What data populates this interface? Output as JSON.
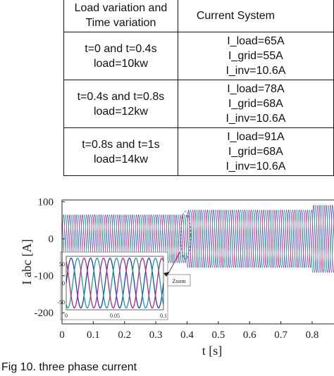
{
  "table": {
    "headers": [
      "Load variation and Time variation",
      "Current System"
    ],
    "rows": [
      {
        "time": [
          "t=0 and t=0.4s",
          "load=10kw"
        ],
        "currents": [
          "I_load=65A",
          "I_grid=55A",
          "I_inv=10.6A"
        ]
      },
      {
        "time": [
          "t=0.4s and t=0.8s",
          "load=12kw"
        ],
        "currents": [
          "I_load=78A",
          "I_grid=68A",
          "I_inv=10.6A"
        ]
      },
      {
        "time": [
          "t=0.8s and t=1s",
          "load=14kw"
        ],
        "currents": [
          "I_load=91A",
          "I_grid=68A",
          "I_inv=10.6A"
        ]
      }
    ]
  },
  "chart_data": {
    "type": "line",
    "title": "",
    "xlabel": "t [s]",
    "ylabel": "I abc [A]",
    "xlim": [
      0,
      0.87
    ],
    "ylim": [
      -230,
      105
    ],
    "xticks": [
      "0",
      "0.1",
      "0.2",
      "0.3",
      "0.4",
      "0.5",
      "0.6",
      "0.7",
      "0.8"
    ],
    "yticks": [
      "100",
      "0",
      "-100",
      "-200"
    ],
    "grid": false,
    "segments": [
      {
        "t_start": 0,
        "t_end": 0.4,
        "amplitude": 65
      },
      {
        "t_start": 0.4,
        "t_end": 0.8,
        "amplitude": 78
      },
      {
        "t_start": 0.8,
        "t_end": 1.0,
        "amplitude": 91
      }
    ],
    "series_colors": [
      "#1f3fbf",
      "#19a08c",
      "#c0208a"
    ],
    "inset": {
      "label": "Zoom",
      "xticks": [
        "0",
        "0.05",
        "0.1"
      ],
      "yticks": [
        "50",
        "0",
        "-50"
      ]
    }
  },
  "caption": "Fig 10. three phase current"
}
